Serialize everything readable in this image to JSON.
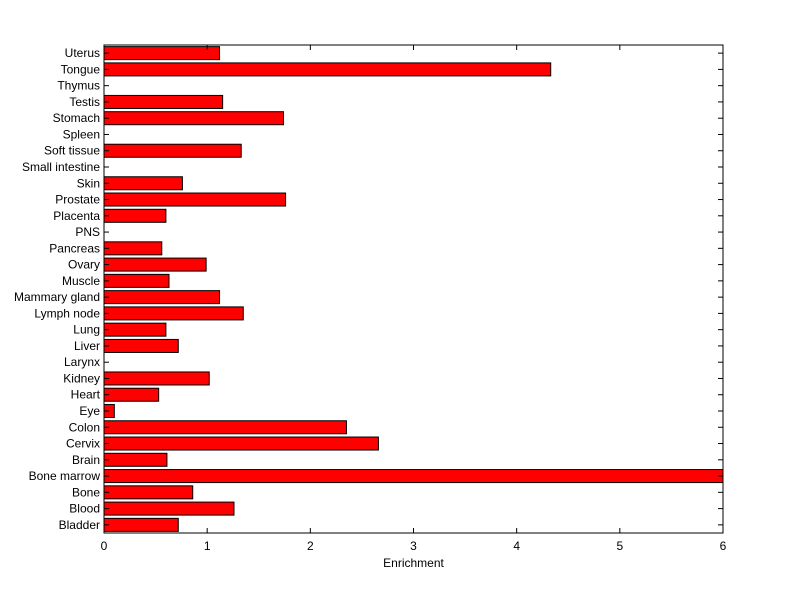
{
  "chart_data": {
    "type": "bar",
    "orientation": "horizontal",
    "title": "",
    "xlabel": "Enrichment",
    "ylabel": "",
    "xlim": [
      0,
      6
    ],
    "xticks": [
      0,
      1,
      2,
      3,
      4,
      5,
      6
    ],
    "grid": false,
    "bar_color": "#ff0000",
    "bar_edge_color": "#000000",
    "categories": [
      "Bladder",
      "Blood",
      "Bone",
      "Bone marrow",
      "Brain",
      "Cervix",
      "Colon",
      "Eye",
      "Heart",
      "Kidney",
      "Larynx",
      "Liver",
      "Lung",
      "Lymph node",
      "Mammary gland",
      "Muscle",
      "Ovary",
      "Pancreas",
      "PNS",
      "Placenta",
      "Prostate",
      "Skin",
      "Small intestine",
      "Soft tissue",
      "Spleen",
      "Stomach",
      "Testis",
      "Thymus",
      "Tongue",
      "Uterus"
    ],
    "values": [
      0.72,
      1.26,
      0.86,
      6.0,
      0.61,
      2.66,
      2.35,
      0.1,
      0.53,
      1.02,
      0,
      0.72,
      0.6,
      1.35,
      1.12,
      0.63,
      0.99,
      0.56,
      0,
      0.6,
      1.76,
      0.76,
      0,
      1.33,
      0,
      1.74,
      1.15,
      0,
      4.33,
      1.12
    ]
  }
}
